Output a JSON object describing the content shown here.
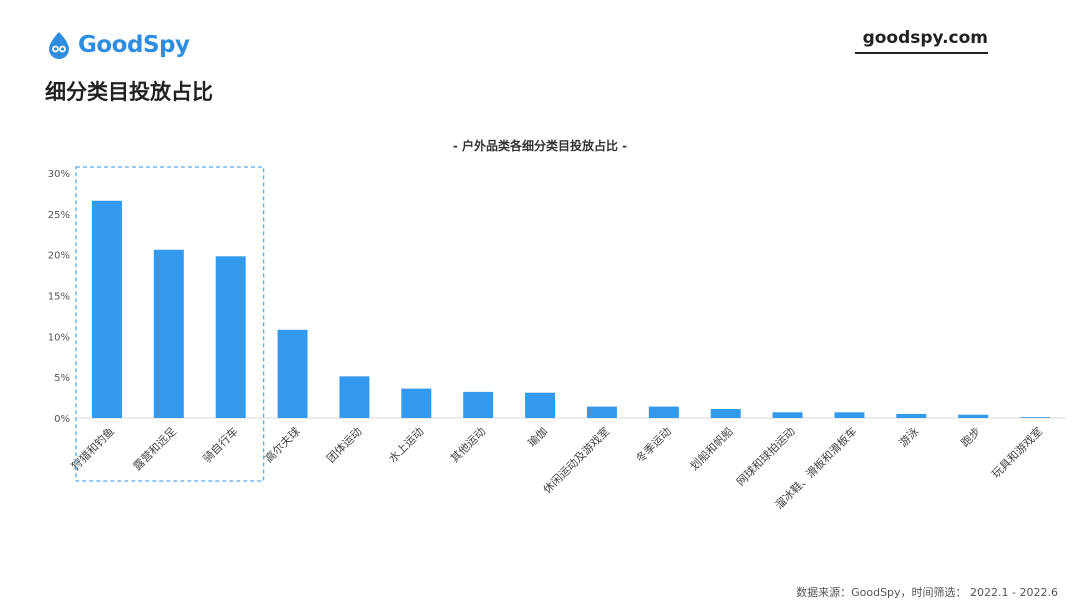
{
  "brand": {
    "name": "GoodSpy",
    "site": "goodspy.com",
    "accent": "#3399ee"
  },
  "page": {
    "title": "细分类目投放占比",
    "source_note": "数据来源：GoodSpy，时间筛选： 2022.1 - 2022.6"
  },
  "chart_data": {
    "type": "bar",
    "title": "- 户外品类各细分类目投放占比 -",
    "categories": [
      "狩猎和钓鱼",
      "露营和远足",
      "骑自行车",
      "高尔夫球",
      "团体运动",
      "水上运动",
      "其他运动",
      "瑜伽",
      "休闲运动及游戏室",
      "冬季运动",
      "划船和帆船",
      "网球和球拍运动",
      "溜冰鞋、滑板和滑板车",
      "游泳",
      "跑步",
      "玩具和游戏室"
    ],
    "values": [
      26.6,
      20.6,
      19.8,
      10.8,
      5.1,
      3.6,
      3.2,
      3.1,
      1.4,
      1.4,
      1.1,
      0.7,
      0.7,
      0.5,
      0.4,
      0.1
    ],
    "ylim": [
      0,
      30
    ],
    "yticks": [
      "0%",
      "5%",
      "10%",
      "15%",
      "20%",
      "25%",
      "30%"
    ],
    "bar_color": "#3399ee",
    "highlight_first_n": 3,
    "highlight_color": "#55aaee"
  }
}
